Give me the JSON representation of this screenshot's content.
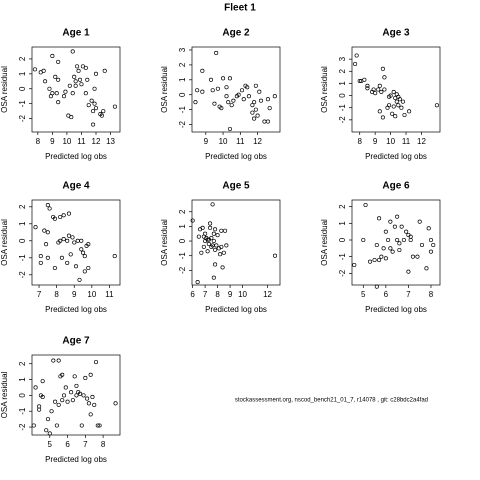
{
  "title": "Fleet 1",
  "footer": "stockassessment.org, nscod_bench21_01_7, r14078 , git: c28bdc2a4fad",
  "chart_data": [
    {
      "type": "scatter",
      "title": "Age 1",
      "xlabel": "Predicted log obs",
      "ylabel": "OSA residual",
      "marker": "open-circle",
      "color": "#000000",
      "xlim": [
        7.6,
        13.65
      ],
      "ylim": [
        -2.9,
        2.8
      ],
      "xticks": [
        8,
        9,
        10,
        11,
        12,
        13
      ],
      "yticks": [
        -2,
        -1,
        0,
        1,
        2
      ],
      "x": [
        7.8,
        8.2,
        8.4,
        8.5,
        8.8,
        9.0,
        9.0,
        9.2,
        9.4,
        9.4,
        9.3,
        9.4,
        9.8,
        9.9,
        10.2,
        10.1,
        10.3,
        10.4,
        10.5,
        10.6,
        10.7,
        10.8,
        10.9,
        11.0,
        11.1,
        11.3,
        11.3,
        11.5,
        11.7,
        11.9,
        12.0,
        11.8,
        12.0,
        12.3,
        12.5,
        12.6,
        13.3,
        10.6,
        11.4,
        11.8,
        11.9,
        12.4,
        10.4,
        8.9
      ],
      "values": [
        1.3,
        1.1,
        1.2,
        0.5,
        0,
        -0.3,
        2.2,
        0.8,
        0.6,
        1.8,
        -0.3,
        -0.9,
        -0.5,
        -0.2,
        0.2,
        -1.8,
        -1.9,
        2.5,
        0.8,
        0.5,
        1.5,
        1.2,
        0.6,
        0.3,
        1.5,
        1.4,
        -0.3,
        -1.1,
        -0.8,
        0,
        -1.3,
        -2.4,
        1.0,
        -1.7,
        -1.5,
        1.2,
        -1.2,
        0.2,
        0.6,
        -1.5,
        -1.0,
        -1.8,
        -0.3,
        -0.5
      ]
    },
    {
      "type": "scatter",
      "title": "Age 2",
      "xlabel": "Predicted log obs",
      "ylabel": "OSA residual",
      "marker": "open-circle",
      "color": "#000000",
      "xlim": [
        8.2,
        13.3
      ],
      "ylim": [
        -2.5,
        3.2
      ],
      "xticks": [
        9,
        10,
        11,
        12
      ],
      "yticks": [
        -2,
        -1,
        0,
        1,
        2,
        3
      ],
      "x": [
        8.4,
        8.5,
        8.8,
        8.8,
        9.3,
        9.4,
        9.5,
        9.6,
        9.8,
        9.9,
        9.7,
        10.0,
        10.2,
        10.2,
        10.4,
        10.3,
        10.5,
        10.4,
        10.6,
        10.8,
        10.9,
        11.1,
        11.2,
        11.3,
        11.4,
        11.5,
        11.7,
        11.7,
        11.8,
        11.9,
        11.8,
        12.0,
        12.1,
        12.2,
        12.4,
        12.6,
        12.6,
        12.7,
        13.0,
        11.9
      ],
      "values": [
        -0.5,
        0.3,
        1.6,
        0.2,
        1.0,
        0.3,
        -0.6,
        2.8,
        -0.8,
        -0.9,
        0.4,
        1.1,
        0.5,
        -0.1,
        1.1,
        -0.5,
        -0.7,
        -2.3,
        -0.4,
        -0.1,
        0,
        0.3,
        -0.3,
        0.6,
        0.5,
        -0.1,
        -0.7,
        -1.2,
        -0.5,
        0.6,
        -1.6,
        -1.4,
        0.2,
        -0.4,
        -1.8,
        -1.8,
        -0.3,
        -0.9,
        -0.1,
        -1.0
      ]
    },
    {
      "type": "scatter",
      "title": "Age 3",
      "xlabel": "Predicted log obs",
      "ylabel": "OSA residual",
      "marker": "open-circle",
      "color": "#000000",
      "xlim": [
        7.5,
        13.2
      ],
      "ylim": [
        -3,
        4
      ],
      "xticks": [
        8,
        9,
        10,
        11,
        12
      ],
      "yticks": [
        -2,
        -1,
        0,
        1,
        2,
        3
      ],
      "x": [
        7.7,
        7.8,
        8.0,
        8.1,
        8.3,
        8.5,
        8.5,
        8.8,
        8.9,
        9.0,
        9.2,
        9.3,
        9.3,
        9.4,
        9.5,
        9.6,
        9.6,
        9.8,
        9.5,
        9.9,
        10.0,
        10.1,
        10.2,
        10.3,
        10.4,
        10.4,
        10.5,
        10.7,
        10.6,
        10.8,
        10.9,
        11.2,
        10.3,
        9.9,
        13.0,
        10.5,
        10.2
      ],
      "values": [
        2.6,
        3.3,
        1.2,
        1.2,
        1.3,
        0.8,
        0.6,
        0.3,
        0.5,
        0.2,
        0.5,
        0.8,
        -1.3,
        0.3,
        2.2,
        1.5,
        0.5,
        -1.0,
        -1.8,
        -0.8,
        0,
        -1.5,
        -0.9,
        -0.2,
        0.1,
        -0.5,
        -0.8,
        -1.0,
        -0.3,
        -0.5,
        -1.6,
        -1.3,
        -1.7,
        -0.1,
        -0.8,
        -0.1,
        0.3
      ]
    },
    {
      "type": "scatter",
      "title": "Age 4",
      "xlabel": "Predicted log obs",
      "ylabel": "OSA residual",
      "marker": "open-circle",
      "color": "#000000",
      "xlim": [
        6.6,
        11.6
      ],
      "ylim": [
        -2.6,
        2.4
      ],
      "xticks": [
        7,
        8,
        9,
        10,
        11
      ],
      "yticks": [
        -2,
        -1,
        0,
        1,
        2
      ],
      "x": [
        6.8,
        7.1,
        7.1,
        7.3,
        7.4,
        7.5,
        7.5,
        7.6,
        7.5,
        7.8,
        7.9,
        7.9,
        8.1,
        8.2,
        8.3,
        8.2,
        8.4,
        8.4,
        8.6,
        8.6,
        8.7,
        8.8,
        8.9,
        9.0,
        9.1,
        9.2,
        9.3,
        9.4,
        9.5,
        9.6,
        9.6,
        9.7,
        9.8,
        9.8,
        11.3,
        9.4,
        8.7
      ],
      "values": [
        0.8,
        -0.9,
        -1.3,
        0.6,
        -0.2,
        -1.0,
        2.1,
        1.9,
        0.5,
        1.4,
        -1.6,
        1.3,
        -0.1,
        0,
        -1.0,
        1.4,
        1.5,
        0.1,
        -1.3,
        0,
        1.6,
        -0.8,
        0.2,
        -0.1,
        -1.5,
        0,
        -2.3,
        0,
        -0.7,
        -0.9,
        -1.8,
        -0.3,
        -1.6,
        -0.2,
        -0.9,
        -0.5,
        0.3
      ]
    },
    {
      "type": "scatter",
      "title": "Age 5",
      "xlabel": "Predicted log obs",
      "ylabel": "OSA residual",
      "marker": "open-circle",
      "color": "#000000",
      "xlim": [
        5.95,
        13.0
      ],
      "ylim": [
        -3.0,
        2.8
      ],
      "xticks": [
        6,
        7,
        8,
        9,
        10,
        12
      ],
      "yticks": [
        -2,
        -1,
        0,
        1,
        2
      ],
      "x": [
        6.0,
        6.4,
        6.5,
        6.6,
        6.7,
        6.8,
        6.9,
        7.0,
        7.0,
        7.1,
        7.2,
        7.3,
        7.3,
        7.4,
        7.4,
        7.5,
        7.5,
        7.6,
        7.6,
        7.7,
        7.7,
        7.8,
        7.8,
        7.9,
        8.0,
        8.1,
        8.2,
        8.3,
        8.3,
        8.4,
        8.5,
        8.6,
        8.7,
        7.7,
        7.8,
        7.2,
        12.6,
        6.9
      ],
      "values": [
        1.4,
        -2.8,
        0.3,
        0.8,
        -0.8,
        0.9,
        0.3,
        0,
        0.5,
        0.2,
        -0.7,
        0.1,
        -0.2,
        0.9,
        1.2,
        0.2,
        -0.4,
        2.5,
        -0.3,
        0.5,
        0,
        -0.6,
        0.8,
        -0.3,
        0.4,
        -0.5,
        -0.9,
        -0.4,
        0.7,
        -1.8,
        -0.8,
        0.7,
        -0.3,
        -2.5,
        -1.6,
        0.1,
        -1.0,
        -0.4
      ]
    },
    {
      "type": "scatter",
      "title": "Age 6",
      "xlabel": "Predicted log obs",
      "ylabel": "OSA residual",
      "marker": "open-circle",
      "color": "#000000",
      "xlim": [
        4.5,
        8.4
      ],
      "ylim": [
        -2.7,
        2.4
      ],
      "xticks": [
        5,
        6,
        7,
        8
      ],
      "yticks": [
        -2,
        -1,
        0,
        1,
        2
      ],
      "x": [
        4.6,
        5.0,
        5.1,
        5.3,
        5.5,
        5.6,
        5.7,
        5.8,
        5.7,
        5.6,
        5.9,
        6.0,
        6.0,
        6.1,
        6.2,
        6.2,
        6.3,
        6.4,
        6.5,
        6.5,
        6.6,
        6.7,
        6.8,
        6.9,
        7.0,
        7.0,
        7.1,
        7.2,
        7.4,
        7.5,
        7.6,
        7.8,
        7.9,
        8.0,
        8.1,
        8.0,
        6.6,
        7.1
      ],
      "values": [
        -1.5,
        0,
        2.1,
        -1.3,
        -1.2,
        -0.3,
        -1.2,
        -1.0,
        1.3,
        -2.8,
        -0.5,
        -1.1,
        0.5,
        0,
        1.1,
        -0.5,
        -0.7,
        0.8,
        0,
        1.4,
        -0.6,
        0.8,
        0,
        0.5,
        -1.9,
        0.3,
        0.2,
        -1.0,
        -1.0,
        1.1,
        -0.3,
        -1.7,
        0.7,
        0,
        -0.3,
        -0.7,
        -0.2,
        0
      ]
    },
    {
      "type": "scatter",
      "title": "Age 7",
      "xlabel": "Predicted log obs",
      "ylabel": "OSA residual",
      "marker": "open-circle",
      "color": "#000000",
      "xlim": [
        4.0,
        8.95
      ],
      "ylim": [
        -2.5,
        2.55
      ],
      "xticks": [
        5,
        6,
        7,
        8
      ],
      "yticks": [
        -2,
        -1,
        0,
        1,
        2
      ],
      "x": [
        4.1,
        4.2,
        4.4,
        4.4,
        4.5,
        4.6,
        4.6,
        4.8,
        4.9,
        5.0,
        5.1,
        5.2,
        5.3,
        5.4,
        5.5,
        5.6,
        5.5,
        5.7,
        5.7,
        5.8,
        5.9,
        6.0,
        6.2,
        6.3,
        6.4,
        6.5,
        6.5,
        6.6,
        6.7,
        6.8,
        6.9,
        7.0,
        7.1,
        7.2,
        7.3,
        7.4,
        7.5,
        7.6,
        7.7,
        7.8,
        8.7,
        7.3
      ],
      "values": [
        -1.9,
        0.5,
        -0.7,
        -0.9,
        0,
        0.9,
        -0.1,
        -2.2,
        -1.5,
        -2.4,
        -1.0,
        2.2,
        -0.4,
        -1.9,
        2.2,
        1.2,
        -0.6,
        1.3,
        -0.3,
        0,
        0.5,
        -0.4,
        0.2,
        -0.3,
        1.2,
        0,
        0.6,
        0.2,
        0.1,
        -1.9,
        0,
        1.1,
        -0.2,
        -0.5,
        1.3,
        -0.1,
        -0.6,
        2.1,
        -1.9,
        -1.9,
        -0.5,
        -1.2
      ]
    }
  ]
}
